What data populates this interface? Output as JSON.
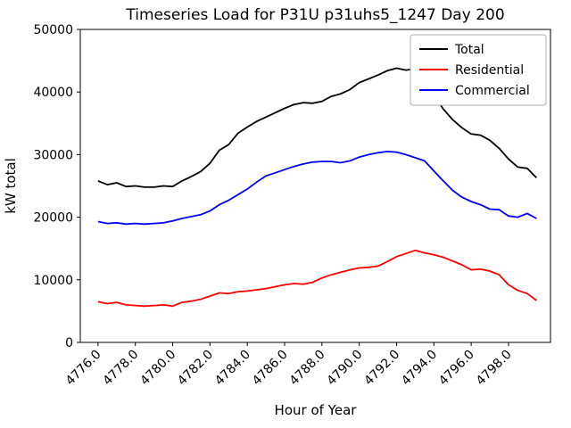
{
  "chart_data": {
    "type": "line",
    "title": "Timeseries Load for P31U p31uhs5_1247  Day 200",
    "xlabel": "Hour of Year",
    "ylabel": "kW total",
    "xlim": [
      4775.05,
      4800.25
    ],
    "ylim": [
      0,
      50000
    ],
    "grid": false,
    "legend_position": "upper right",
    "yticks": [
      0,
      10000,
      20000,
      30000,
      40000,
      50000
    ],
    "ytick_labels": [
      "0",
      "10000",
      "20000",
      "30000",
      "40000",
      "50000"
    ],
    "xticks": [
      4776,
      4778,
      4780,
      4782,
      4784,
      4786,
      4788,
      4790,
      4792,
      4794,
      4796,
      4798
    ],
    "xtick_labels": [
      "4776.0",
      "4778.0",
      "4780.0",
      "4782.0",
      "4784.0",
      "4786.0",
      "4788.0",
      "4790.0",
      "4792.0",
      "4794.0",
      "4796.0",
      "4798.0"
    ],
    "x": [
      4776.0,
      4776.5,
      4777.0,
      4777.5,
      4778.0,
      4778.5,
      4779.0,
      4779.5,
      4780.0,
      4780.5,
      4781.0,
      4781.5,
      4782.0,
      4782.5,
      4783.0,
      4783.5,
      4784.0,
      4784.5,
      4785.0,
      4785.5,
      4786.0,
      4786.5,
      4787.0,
      4787.5,
      4788.0,
      4788.5,
      4789.0,
      4789.5,
      4790.0,
      4790.5,
      4791.0,
      4791.5,
      4792.0,
      4792.5,
      4793.0,
      4793.5,
      4794.0,
      4794.5,
      4795.0,
      4795.5,
      4796.0,
      4796.5,
      4797.0,
      4797.5,
      4798.0,
      4798.5,
      4799.0,
      4799.5
    ],
    "series": [
      {
        "name": "Total",
        "color": "#000000",
        "values": [
          25800,
          25200,
          25500,
          24900,
          25000,
          24800,
          24800,
          25000,
          24900,
          25800,
          26500,
          27300,
          28600,
          30700,
          31600,
          33400,
          34400,
          35300,
          36000,
          36700,
          37400,
          38000,
          38300,
          38200,
          38500,
          39300,
          39700,
          40400,
          41500,
          42100,
          42700,
          43400,
          43800,
          43500,
          43700,
          43400,
          39600,
          37300,
          35600,
          34300,
          33300,
          33100,
          32300,
          31000,
          29300,
          28000,
          27800,
          26300
        ]
      },
      {
        "name": "Residential",
        "color": "#ff0000",
        "values": [
          6500,
          6200,
          6400,
          6000,
          5900,
          5800,
          5900,
          6000,
          5800,
          6400,
          6600,
          6900,
          7400,
          7900,
          7800,
          8100,
          8200,
          8400,
          8600,
          8900,
          9200,
          9400,
          9300,
          9600,
          10300,
          10800,
          11200,
          11600,
          11900,
          12000,
          12200,
          12900,
          13700,
          14200,
          14700,
          14300,
          14000,
          13600,
          13000,
          12400,
          11600,
          11700,
          11400,
          10800,
          9200,
          8300,
          7800,
          6700
        ]
      },
      {
        "name": "Commercial",
        "color": "#0000ff",
        "values": [
          19300,
          19000,
          19100,
          18900,
          19000,
          18900,
          19000,
          19100,
          19400,
          19800,
          20100,
          20400,
          21000,
          22000,
          22700,
          23600,
          24500,
          25600,
          26600,
          27100,
          27600,
          28100,
          28500,
          28800,
          28900,
          28900,
          28700,
          29000,
          29600,
          30000,
          30300,
          30500,
          30400,
          30000,
          29500,
          29000,
          27400,
          25800,
          24300,
          23200,
          22500,
          22000,
          21300,
          21200,
          20200,
          20000,
          20600,
          19800
        ]
      }
    ]
  }
}
